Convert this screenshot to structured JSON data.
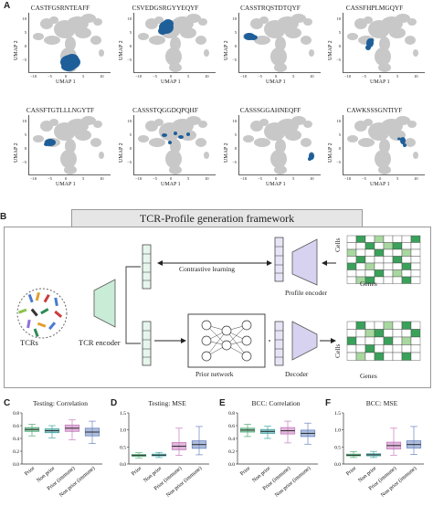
{
  "panelA": {
    "label": "A",
    "xlabel": "UMAP 1",
    "ylabel": "UMAP 2",
    "xticks": [
      "−10",
      "−5",
      "0",
      "5",
      "10"
    ],
    "yticks": [
      "10",
      "5",
      "0",
      "−5"
    ],
    "plots": [
      {
        "title": "CASTFGSRNTEAFF",
        "region": "bottom-center",
        "color": "#1f5f99"
      },
      {
        "title": "CSVEDGSRGYYEQYF",
        "region": "top-left",
        "color": "#1f5f99"
      },
      {
        "title": "CASSTRQSTDTQYF",
        "region": "left",
        "color": "#1f5f99"
      },
      {
        "title": "CASSFHPLMGQYF",
        "region": "mid-left",
        "color": "#1f5f99"
      },
      {
        "title": "CASSFTGTLLLNGYTF",
        "region": "left-lower",
        "color": "#1f5f99"
      },
      {
        "title": "CASSSTQGGDQPQHF",
        "region": "mid-scatter",
        "color": "#1f5f99"
      },
      {
        "title": "CASSSGGAHNEQFF",
        "region": "right-bottom",
        "color": "#1f5f99"
      },
      {
        "title": "CAWKSSSGNTIYF",
        "region": "center-right",
        "color": "#1f5f99"
      }
    ]
  },
  "panelB": {
    "label": "B",
    "title": "TCR-Profile generation framework",
    "tcrs_label": "TCRs",
    "tcr_encoder_label": "TCR encoder",
    "contrastive_label": "Contrastive learning",
    "profile_encoder_label": "Profile encoder",
    "prior_network_label": "Prior network",
    "decoder_label": "Decoder",
    "cells_label": "Cells",
    "genes_label": "Genes"
  },
  "boxplots": [
    {
      "label": "C",
      "title": "Testing: Correlation",
      "ylim": [
        0.0,
        0.8
      ],
      "yticks": [
        "0.0",
        "0.2",
        "0.4",
        "0.6",
        "0.8"
      ]
    },
    {
      "label": "D",
      "title": "Testing: MSE",
      "ylim": [
        0.0,
        1.5
      ],
      "yticks": [
        "0.0",
        "0.5",
        "1.0",
        "1.5"
      ]
    },
    {
      "label": "E",
      "title": "BCC: Correlation",
      "ylim": [
        0.0,
        0.8
      ],
      "yticks": [
        "0.0",
        "0.2",
        "0.4",
        "0.6",
        "0.8"
      ]
    },
    {
      "label": "F",
      "title": "BCC: MSE",
      "ylim": [
        0.0,
        1.5
      ],
      "yticks": [
        "0.0",
        "0.5",
        "1.0",
        "1.5"
      ]
    }
  ],
  "box_categories": [
    "Prior",
    "Non prior",
    "Prior (immune)",
    "Non prior (immune)"
  ],
  "box_colors": [
    "#4daa73",
    "#3fa0a0",
    "#c67bbd",
    "#6b86c0"
  ],
  "chart_data": [
    {
      "type": "box",
      "title": "Testing: Correlation",
      "categories": [
        "Prior",
        "Non prior",
        "Prior (immune)",
        "Non prior (immune)"
      ],
      "ylim": [
        0.0,
        0.8
      ],
      "boxes": [
        {
          "q1": 0.51,
          "median": 0.54,
          "q3": 0.57,
          "whisker_low": 0.44,
          "whisker_high": 0.62
        },
        {
          "q1": 0.49,
          "median": 0.52,
          "q3": 0.55,
          "whisker_low": 0.41,
          "whisker_high": 0.6
        },
        {
          "q1": 0.51,
          "median": 0.56,
          "q3": 0.61,
          "whisker_low": 0.38,
          "whisker_high": 0.69
        },
        {
          "q1": 0.44,
          "median": 0.5,
          "q3": 0.56,
          "whisker_low": 0.32,
          "whisker_high": 0.67
        }
      ]
    },
    {
      "type": "box",
      "title": "Testing: MSE",
      "categories": [
        "Prior",
        "Non prior",
        "Prior (immune)",
        "Non prior (immune)"
      ],
      "ylim": [
        0.0,
        1.5
      ],
      "boxes": [
        {
          "q1": 0.23,
          "median": 0.25,
          "q3": 0.28,
          "whisker_low": 0.18,
          "whisker_high": 0.33
        },
        {
          "q1": 0.24,
          "median": 0.26,
          "q3": 0.29,
          "whisker_low": 0.19,
          "whisker_high": 0.34
        },
        {
          "q1": 0.42,
          "median": 0.52,
          "q3": 0.63,
          "whisker_low": 0.25,
          "whisker_high": 1.05
        },
        {
          "q1": 0.46,
          "median": 0.57,
          "q3": 0.68,
          "whisker_low": 0.27,
          "whisker_high": 1.1
        }
      ]
    },
    {
      "type": "box",
      "title": "BCC: Correlation",
      "categories": [
        "Prior",
        "Non prior",
        "Prior (immune)",
        "Non prior (immune)"
      ],
      "ylim": [
        0.0,
        0.8
      ],
      "boxes": [
        {
          "q1": 0.5,
          "median": 0.53,
          "q3": 0.56,
          "whisker_low": 0.43,
          "whisker_high": 0.62
        },
        {
          "q1": 0.48,
          "median": 0.51,
          "q3": 0.54,
          "whisker_low": 0.4,
          "whisker_high": 0.59
        },
        {
          "q1": 0.47,
          "median": 0.52,
          "q3": 0.57,
          "whisker_low": 0.33,
          "whisker_high": 0.67
        },
        {
          "q1": 0.43,
          "median": 0.48,
          "q3": 0.53,
          "whisker_low": 0.31,
          "whisker_high": 0.64
        }
      ]
    },
    {
      "type": "box",
      "title": "BCC: MSE",
      "categories": [
        "Prior",
        "Non prior",
        "Prior (immune)",
        "Non prior (immune)"
      ],
      "ylim": [
        0.0,
        1.5
      ],
      "boxes": [
        {
          "q1": 0.24,
          "median": 0.26,
          "q3": 0.29,
          "whisker_low": 0.19,
          "whisker_high": 0.36
        },
        {
          "q1": 0.24,
          "median": 0.27,
          "q3": 0.3,
          "whisker_low": 0.19,
          "whisker_high": 0.37
        },
        {
          "q1": 0.44,
          "median": 0.54,
          "q3": 0.64,
          "whisker_low": 0.26,
          "whisker_high": 1.05
        },
        {
          "q1": 0.47,
          "median": 0.57,
          "q3": 0.68,
          "whisker_low": 0.28,
          "whisker_high": 1.1
        }
      ]
    }
  ]
}
